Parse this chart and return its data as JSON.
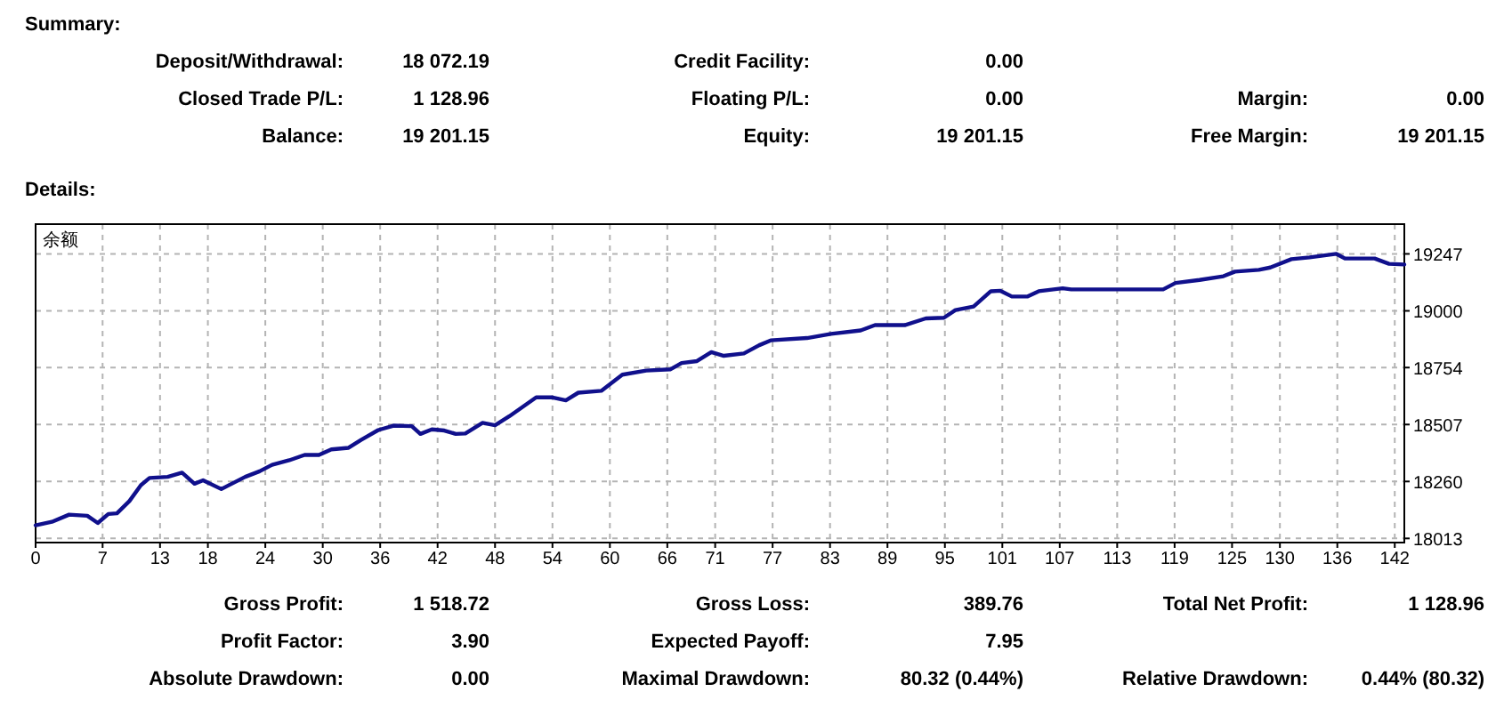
{
  "chart_data": {
    "type": "line",
    "annotations": [
      "Summary:",
      "Deposit/Withdrawal:",
      "18 072.19",
      "Credit Facility:",
      "0.00",
      "Closed Trade P/L:",
      "1 128.96",
      "Floating P/L:",
      "0.00",
      "Margin:",
      "0.00",
      "Balance:",
      "19 201.15",
      "Equity:",
      "19 201.15",
      "Free Margin:",
      "19 201.15",
      "Details:",
      "Gross Profit:",
      "1 518.72",
      "Gross Loss:",
      "389.76",
      "Total Net Profit:",
      "1 128.96",
      "Profit Factor:",
      "3.90",
      "Expected Payoff:",
      "7.95",
      "Absolute Drawdown:",
      "0.00",
      "Maximal Drawdown:",
      "80.32 (0.44%)",
      "Relative Drawdown:",
      "0.44% (80.32)"
    ],
    "series": [
      {
        "name": "余额",
        "color": "#10108c",
        "x": [
          0,
          1.7,
          3.5,
          5.4,
          6.5,
          7.6,
          8.5,
          9.8,
          11,
          11.9,
          13.8,
          15.3,
          16.6,
          17.5,
          19.4,
          21.9,
          23.4,
          24.7,
          26.5,
          28.1,
          29.6,
          30.9,
          32.7,
          34,
          35.8,
          37.4,
          39.3,
          40.2,
          41.4,
          42.7,
          43.9,
          44.9,
          46.7,
          48,
          49.5,
          52.3,
          53.9,
          55.4,
          56.7,
          59.1,
          61.3,
          63.8,
          66.3,
          67.5,
          69.1,
          70.6,
          71.9,
          74,
          75.6,
          76.8,
          80.6,
          83.1,
          86.2,
          87.7,
          90.8,
          93,
          94.9,
          96.1,
          98,
          99.8,
          100.8,
          102,
          103.6,
          104.8,
          107.3,
          108.2,
          117.8,
          119.1,
          121.6,
          124.1,
          125.3,
          127.8,
          129,
          131.2,
          133.1,
          135.9,
          136.8,
          139.9,
          141.4,
          143
        ],
        "values": [
          18070,
          18085,
          18116,
          18111,
          18080,
          18119,
          18122,
          18175,
          18244,
          18275,
          18280,
          18298,
          18250,
          18265,
          18227,
          18280,
          18304,
          18332,
          18352,
          18375,
          18375,
          18399,
          18406,
          18440,
          18483,
          18502,
          18500,
          18466,
          18486,
          18481,
          18466,
          18468,
          18514,
          18504,
          18543,
          18625,
          18625,
          18612,
          18645,
          18653,
          18723,
          18741,
          18746,
          18774,
          18782,
          18821,
          18805,
          18815,
          18851,
          18872,
          18882,
          18900,
          18915,
          18938,
          18938,
          18967,
          18970,
          19003,
          19019,
          19085,
          19087,
          19062,
          19062,
          19085,
          19098,
          19093,
          19093,
          19121,
          19134,
          19150,
          19170,
          19178,
          19188,
          19224,
          19232,
          19247,
          19227,
          19227,
          19204,
          19201
        ]
      }
    ],
    "xlim": [
      0,
      143
    ],
    "xticks": [
      0,
      7,
      13,
      18,
      24,
      30,
      36,
      42,
      48,
      54,
      60,
      66,
      71,
      77,
      83,
      89,
      95,
      101,
      107,
      113,
      119,
      125,
      130,
      136,
      142
    ],
    "ylim": [
      17995,
      19376
    ],
    "yticks": [
      18013,
      18260,
      18507,
      18754,
      19000,
      19247
    ],
    "grid": true,
    "legend": "top left",
    "line_style": "solid",
    "marker": "none"
  }
}
